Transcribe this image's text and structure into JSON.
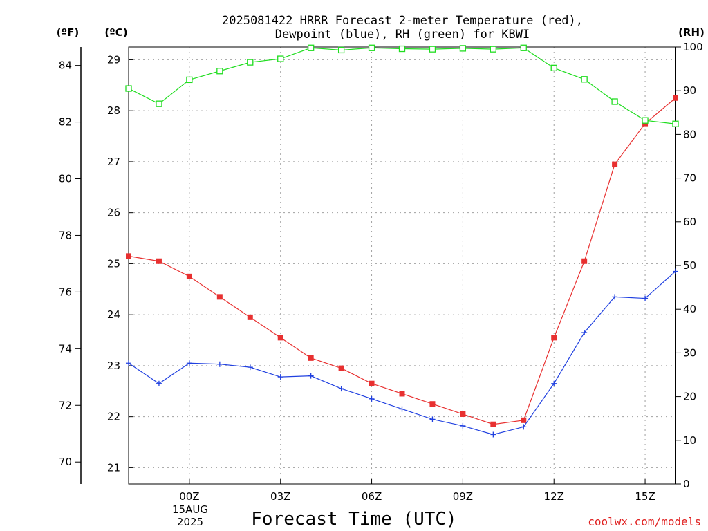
{
  "chart_data": {
    "type": "line",
    "title_line1": "2025081422 HRRR Forecast 2-meter Temperature (red),",
    "title_line2": "Dewpoint (blue), RH (green) for KBWI",
    "xlabel": "Forecast Time (UTC)",
    "credit": "coolwx.com/models",
    "units": {
      "fahrenheit": "(ºF)",
      "celsius": "(ºC)",
      "rh": "(RH)"
    },
    "x_ticks": [
      "00Z",
      "03Z",
      "06Z",
      "09Z",
      "12Z",
      "15Z"
    ],
    "x_tick_hours": [
      2,
      5,
      8,
      11,
      14,
      17
    ],
    "date_label_line1": "15AUG",
    "date_label_line2": "2025",
    "x_hours": [
      0,
      1,
      2,
      3,
      4,
      5,
      6,
      7,
      8,
      9,
      10,
      11,
      12,
      13,
      14,
      15,
      16,
      17,
      18
    ],
    "xlim": [
      0,
      18
    ],
    "celsius_axis": {
      "ylim": [
        20.68,
        29.25
      ],
      "ticks": [
        21,
        22,
        23,
        24,
        25,
        26,
        27,
        28,
        29
      ]
    },
    "fahrenheit_axis": {
      "ticks": [
        70,
        72,
        74,
        76,
        78,
        80,
        82,
        84
      ]
    },
    "rh_axis": {
      "ylim": [
        0,
        100
      ],
      "ticks": [
        0,
        10,
        20,
        30,
        40,
        50,
        60,
        70,
        80,
        90,
        100
      ]
    },
    "colors": {
      "temperature": "#e83030",
      "dewpoint": "#2040e0",
      "rh": "#20dd20"
    },
    "series": [
      {
        "name": "Temperature",
        "axis": "celsius",
        "marker": "filled-square",
        "values": [
          25.15,
          25.05,
          24.75,
          24.35,
          23.95,
          23.55,
          23.15,
          22.95,
          22.65,
          22.45,
          22.25,
          22.05,
          21.85,
          21.93,
          23.55,
          25.05,
          26.95,
          27.75,
          28.25
        ]
      },
      {
        "name": "Dewpoint",
        "axis": "celsius",
        "marker": "plus",
        "values": [
          23.05,
          22.65,
          23.05,
          23.03,
          22.97,
          22.78,
          22.8,
          22.55,
          22.35,
          22.15,
          21.95,
          21.82,
          21.65,
          21.8,
          22.65,
          23.65,
          24.35,
          24.32,
          24.85
        ]
      },
      {
        "name": "RH",
        "axis": "rh",
        "marker": "open-square",
        "values": [
          90.5,
          87,
          92.5,
          94.5,
          96.5,
          97.3,
          99.8,
          99.3,
          99.8,
          99.6,
          99.5,
          99.7,
          99.5,
          99.8,
          95.2,
          92.6,
          87.5,
          83.2,
          82.4
        ]
      }
    ]
  }
}
